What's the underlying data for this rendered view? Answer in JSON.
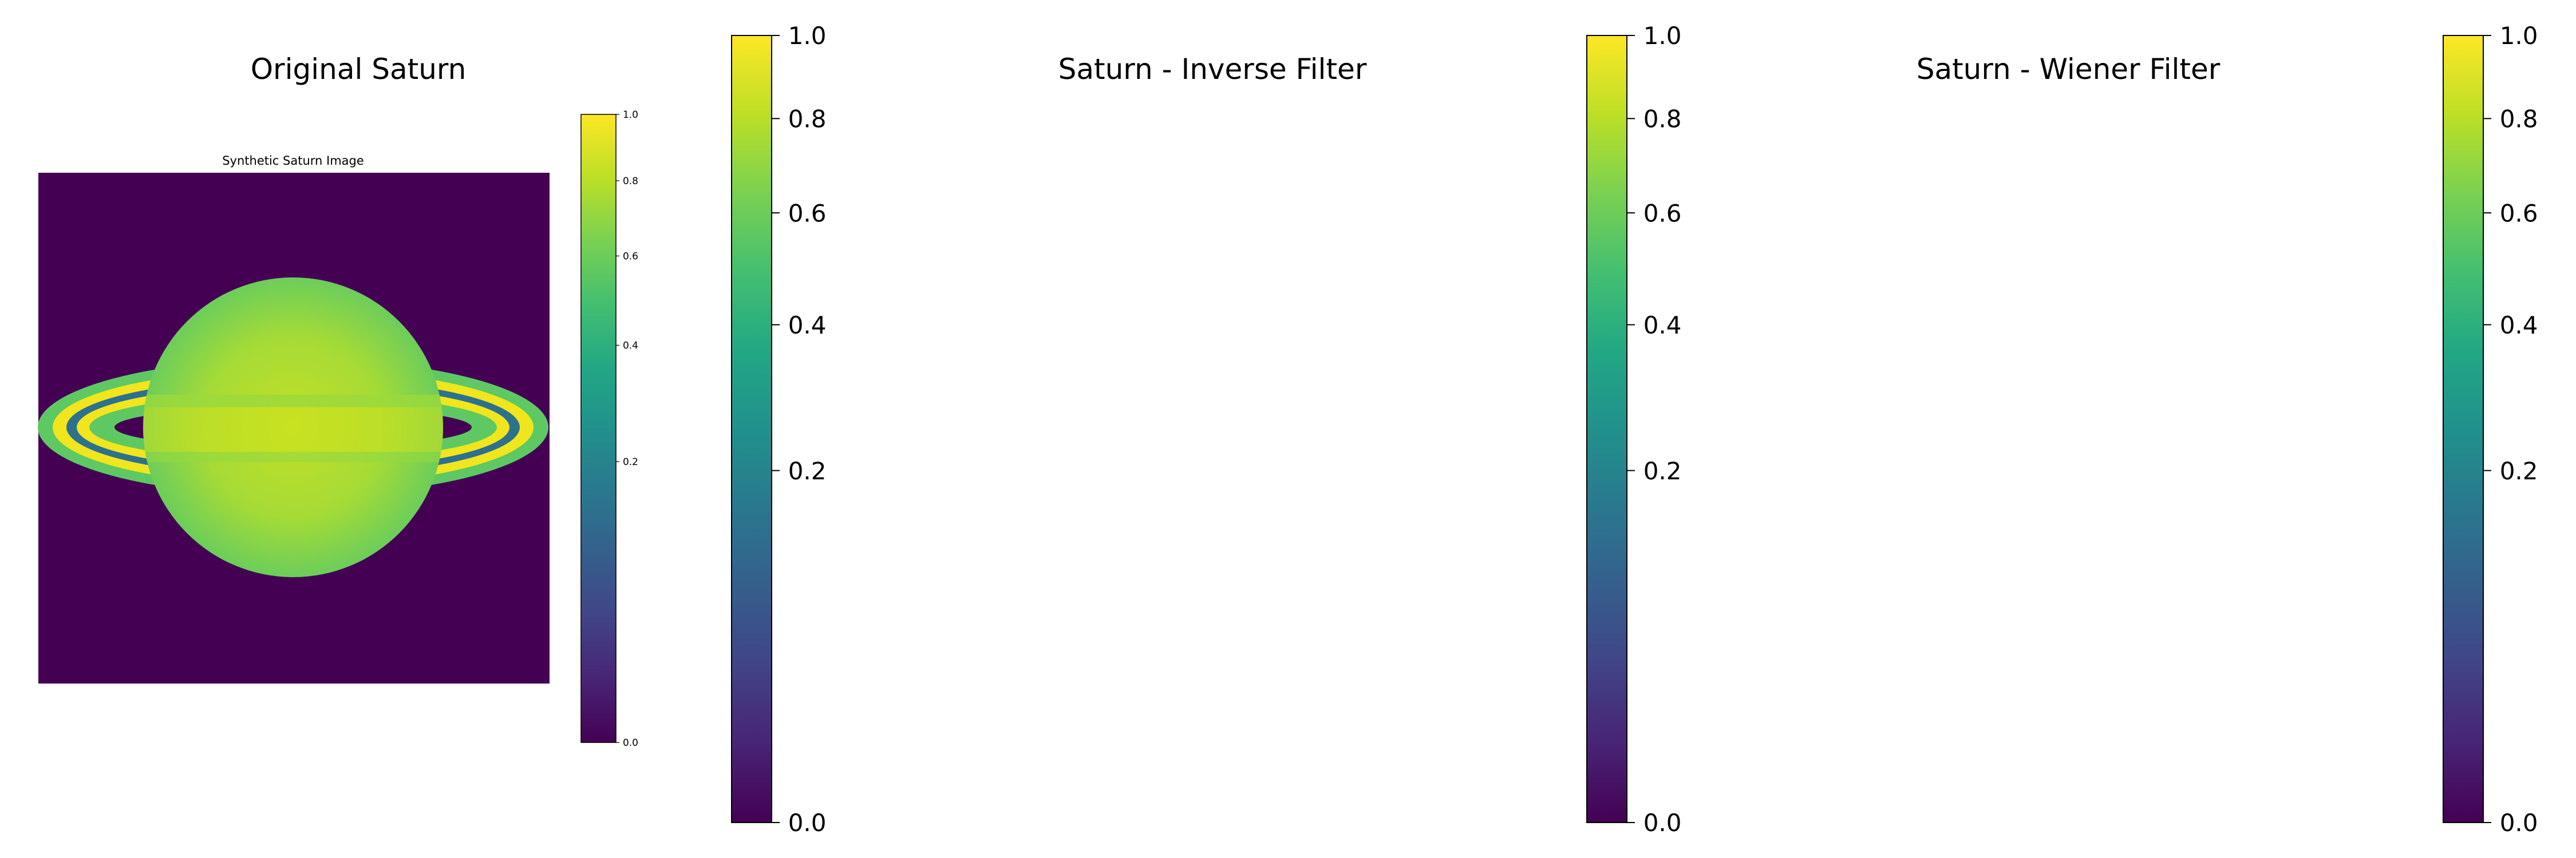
{
  "chart_data": [
    {
      "type": "heatmap",
      "title": "Original Saturn",
      "colormap": "viridis",
      "embedded_figure": {
        "title": "Synthetic Saturn Image",
        "colorbar_ticks": [
          "0.0",
          "0.2",
          "0.4",
          "0.6",
          "0.8",
          "1.0"
        ],
        "colorbar_values": [
          0.0,
          0.2,
          0.4,
          0.6,
          0.8,
          1.0
        ],
        "image": {
          "background_value": 0.0,
          "planet_center_value": 0.9,
          "planet_edge_value": 0.65,
          "ring_values": [
            0.57,
            0.95,
            0.33,
            0.95,
            0.57
          ]
        }
      },
      "colorbar_ticks": [
        "0.0",
        "0.2",
        "0.4",
        "0.6",
        "0.8",
        "1.0"
      ],
      "colorbar_values": [
        0.0,
        0.2,
        0.4,
        0.6,
        0.8,
        1.0
      ],
      "colorbar_range": [
        0.0,
        1.0
      ],
      "colorbar_scale": "power"
    },
    {
      "type": "heatmap",
      "title": "Saturn - Inverse Filter",
      "colormap": "viridis",
      "image": "blank",
      "colorbar_ticks": [
        "0.0",
        "0.2",
        "0.4",
        "0.6",
        "0.8",
        "1.0"
      ],
      "colorbar_values": [
        0.0,
        0.2,
        0.4,
        0.6,
        0.8,
        1.0
      ],
      "colorbar_range": [
        0.0,
        1.0
      ],
      "colorbar_scale": "power"
    },
    {
      "type": "heatmap",
      "title": "Saturn - Wiener Filter",
      "colormap": "viridis",
      "image": "blank",
      "colorbar_ticks": [
        "0.0",
        "0.2",
        "0.4",
        "0.6",
        "0.8",
        "1.0"
      ],
      "colorbar_values": [
        0.0,
        0.2,
        0.4,
        0.6,
        0.8,
        1.0
      ],
      "colorbar_range": [
        0.0,
        1.0
      ],
      "colorbar_scale": "power"
    }
  ]
}
